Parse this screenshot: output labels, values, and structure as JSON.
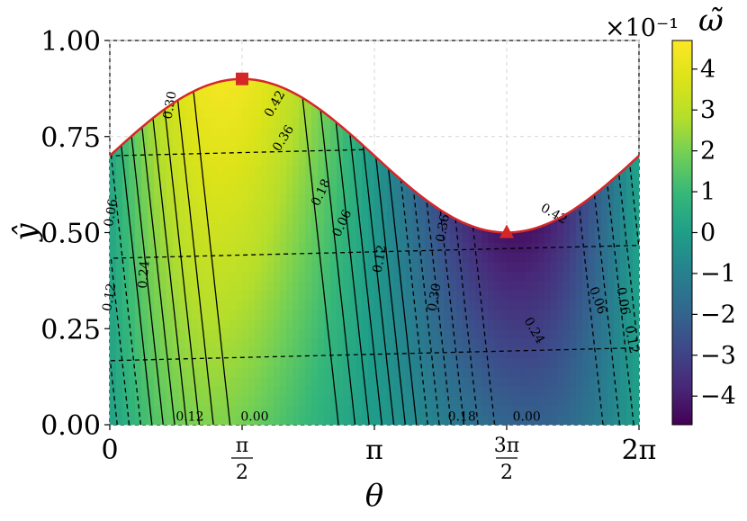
{
  "chart_data": {
    "type": "heatmap",
    "title": "",
    "xlabel": "θ",
    "ylabel": "ŷ",
    "xlim": [
      0,
      6.2832
    ],
    "ylim": [
      0,
      1.0
    ],
    "x_tick_values": [
      0,
      1.5708,
      3.1416,
      4.7124,
      6.2832
    ],
    "x_tick_labels": [
      "0",
      "π/2",
      "π",
      "3π/2",
      "2π"
    ],
    "y_tick_values": [
      0,
      0.25,
      0.5,
      0.75,
      1.0
    ],
    "y_tick_labels": [
      "0.00",
      "0.25",
      "0.50",
      "0.75",
      "1.00"
    ],
    "grid": true,
    "colormap": "viridis",
    "colorbar": {
      "label": "ω̃",
      "scale_label": "×10⁻¹",
      "range": [
        -4.7,
        4.7
      ],
      "tick_values": [
        -4,
        -3,
        -2,
        -1,
        0,
        1,
        2,
        3,
        4
      ],
      "tick_labels": [
        "−4",
        "−3",
        "−2",
        "−1",
        "0",
        "1",
        "2",
        "3",
        "4"
      ]
    },
    "boundary": {
      "description": "upper wall y = 0.7 + 0.2·sin(θ)",
      "color": "#d62728",
      "x": [
        0,
        0.785,
        1.571,
        2.356,
        3.142,
        3.927,
        4.712,
        5.498,
        6.283
      ],
      "y": [
        0.7,
        0.841,
        0.9,
        0.841,
        0.7,
        0.559,
        0.5,
        0.559,
        0.7
      ]
    },
    "markers": [
      {
        "shape": "square",
        "x": 1.5708,
        "y": 0.9,
        "color": "#d62728"
      },
      {
        "shape": "triangle",
        "x": 4.7124,
        "y": 0.5,
        "color": "#d62728"
      }
    ],
    "contour_levels": [
      -0.42,
      -0.36,
      -0.3,
      -0.24,
      -0.18,
      -0.12,
      -0.06,
      0.0,
      0.06,
      0.12,
      0.18,
      0.24,
      0.3,
      0.36,
      0.42
    ],
    "contour_labels": [
      {
        "text": "0.42",
        "x": 2.0,
        "y": 0.83,
        "rot": -60
      },
      {
        "text": "0.36",
        "x": 2.1,
        "y": 0.74,
        "rot": -58
      },
      {
        "text": "0.30",
        "x": 0.76,
        "y": 0.83,
        "rot": -80
      },
      {
        "text": "0.18",
        "x": 2.55,
        "y": 0.6,
        "rot": -65
      },
      {
        "text": "0.06",
        "x": 2.8,
        "y": 0.52,
        "rot": -65
      },
      {
        "text": "0.06",
        "x": 0.06,
        "y": 0.55,
        "rot": -80
      },
      {
        "text": "0.24",
        "x": 0.45,
        "y": 0.39,
        "rot": -85
      },
      {
        "text": "0.12",
        "x": 0.04,
        "y": 0.33,
        "rot": -80
      },
      {
        "text": "0.12",
        "x": 3.25,
        "y": 0.43,
        "rot": -80
      },
      {
        "text": "0.12",
        "x": 0.95,
        "y": 0.01,
        "rot": 0
      },
      {
        "text": "0.00",
        "x": 1.72,
        "y": 0.01,
        "rot": 0
      },
      {
        "text": "0.36",
        "x": 4.0,
        "y": 0.51,
        "rot": -80
      },
      {
        "text": "0.30",
        "x": 3.9,
        "y": 0.33,
        "rot": -80
      },
      {
        "text": "0.42",
        "x": 5.25,
        "y": 0.54,
        "rot": 30
      },
      {
        "text": "0.24",
        "x": 5.0,
        "y": 0.24,
        "rot": 60
      },
      {
        "text": "0.06",
        "x": 5.75,
        "y": 0.32,
        "rot": 70
      },
      {
        "text": "0.06",
        "x": 6.05,
        "y": 0.32,
        "rot": 80
      },
      {
        "text": "0.12",
        "x": 6.15,
        "y": 0.22,
        "rot": 80
      },
      {
        "text": "0.18",
        "x": 4.18,
        "y": 0.01,
        "rot": 0
      },
      {
        "text": "0.00",
        "x": 4.95,
        "y": 0.01,
        "rot": 0
      }
    ]
  }
}
